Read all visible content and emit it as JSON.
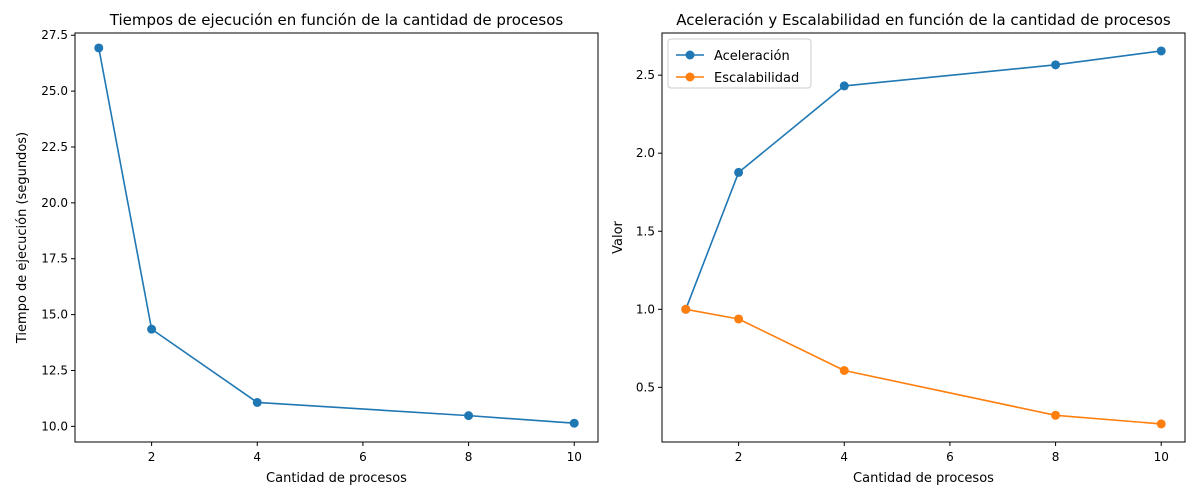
{
  "chart_data": [
    {
      "type": "line",
      "title": "Tiempos de ejecución en función de la cantidad de procesos",
      "xlabel": "Cantidad de procesos",
      "ylabel": "Tiempo de ejecución (segundos)",
      "x": [
        1,
        2,
        4,
        8,
        10
      ],
      "xlim": [
        0.55,
        10.45
      ],
      "ylim": [
        9.3,
        27.6
      ],
      "xticks": [
        2,
        4,
        6,
        8,
        10
      ],
      "yticks": [
        10.0,
        12.5,
        15.0,
        17.5,
        20.0,
        22.5,
        25.0,
        27.5
      ],
      "xtick_labels": [
        "2",
        "4",
        "6",
        "8",
        "10"
      ],
      "ytick_labels": [
        "10.0",
        "12.5",
        "15.0",
        "17.5",
        "20.0",
        "22.5",
        "25.0",
        "27.5"
      ],
      "grid": false,
      "series": [
        {
          "values": [
            26.93,
            14.35,
            11.07,
            10.48,
            10.14
          ],
          "color": "#1f77b4",
          "marker": "circle"
        }
      ]
    },
    {
      "type": "line",
      "title": "Aceleración y Escalabilidad en función de la cantidad de procesos",
      "xlabel": "Cantidad de procesos",
      "ylabel": "Valor",
      "x": [
        1,
        2,
        4,
        8,
        10
      ],
      "xlim": [
        0.55,
        10.45
      ],
      "ylim": [
        0.15,
        2.77
      ],
      "xticks": [
        2,
        4,
        6,
        8,
        10
      ],
      "yticks": [
        0.5,
        1.0,
        1.5,
        2.0,
        2.5
      ],
      "xtick_labels": [
        "2",
        "4",
        "6",
        "8",
        "10"
      ],
      "ytick_labels": [
        "0.5",
        "1.0",
        "1.5",
        "2.0",
        "2.5"
      ],
      "grid": false,
      "legend": "top-left",
      "series": [
        {
          "name": "Aceleración",
          "values": [
            1.0,
            1.877,
            2.431,
            2.566,
            2.655
          ],
          "color": "#1f77b4",
          "marker": "circle"
        },
        {
          "name": "Escalabilidad",
          "values": [
            1.0,
            0.938,
            0.608,
            0.321,
            0.266
          ],
          "color": "#ff7f0e",
          "marker": "circle"
        }
      ]
    }
  ]
}
